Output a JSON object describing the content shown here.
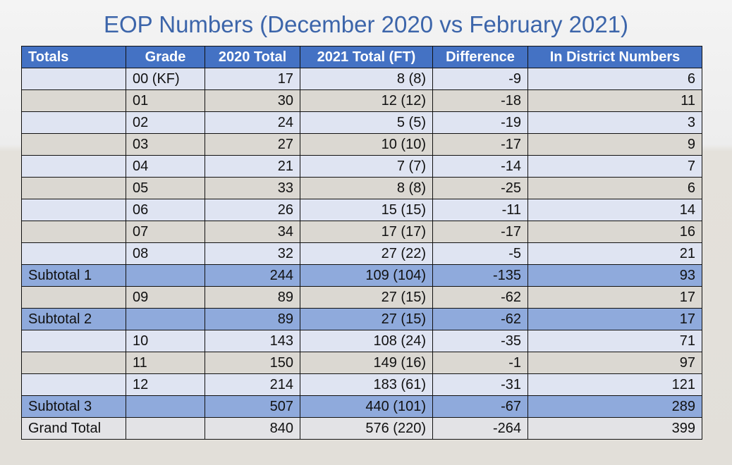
{
  "header": {
    "title": "EOP Numbers (December 2020 vs February 2021)"
  },
  "table": {
    "header": [
      "Totals",
      "Grade",
      "2020 Total",
      "2021 Total (FT)",
      "Difference",
      "In District Numbers"
    ],
    "rows": [
      [
        null,
        "00 (KF)",
        "17",
        "8 (8)",
        "-9",
        "6"
      ],
      [
        null,
        "01",
        "30",
        "12 (12)",
        "-18",
        "11"
      ],
      [
        null,
        "02",
        "24",
        "5 (5)",
        "-19",
        "3"
      ],
      [
        null,
        "03",
        "27",
        "10 (10)",
        "-17",
        "9"
      ],
      [
        null,
        "04",
        "21",
        "7 (7)",
        "-14",
        "7"
      ],
      [
        null,
        "05",
        "33",
        "8 (8)",
        "-25",
        "6"
      ],
      [
        null,
        "06",
        "26",
        "15 (15)",
        "-11",
        "14"
      ],
      [
        null,
        "07",
        "34",
        "17 (17)",
        "-17",
        "16"
      ],
      [
        null,
        "08",
        "32",
        "27 (22)",
        "-5",
        "21"
      ],
      [
        "Subtotal 1",
        null,
        "244",
        "109 (104)",
        "-135",
        "93"
      ],
      [
        null,
        "09",
        "89",
        "27 (15)",
        "-62",
        "17"
      ],
      [
        "Subtotal 2",
        null,
        "89",
        "27 (15)",
        "-62",
        "17"
      ],
      [
        null,
        "10",
        "143",
        "108 (24)",
        "-35",
        "71"
      ],
      [
        null,
        "11",
        "150",
        "149 (16)",
        "-1",
        "97"
      ],
      [
        null,
        "12",
        "214",
        "183 (61)",
        "-31",
        "121"
      ],
      [
        "Subtotal 3",
        null,
        "507",
        "440 (101)",
        "-67",
        "289"
      ],
      [
        "Grand Total",
        null,
        "840",
        "576 (220)",
        "-264",
        "399"
      ]
    ]
  }
}
